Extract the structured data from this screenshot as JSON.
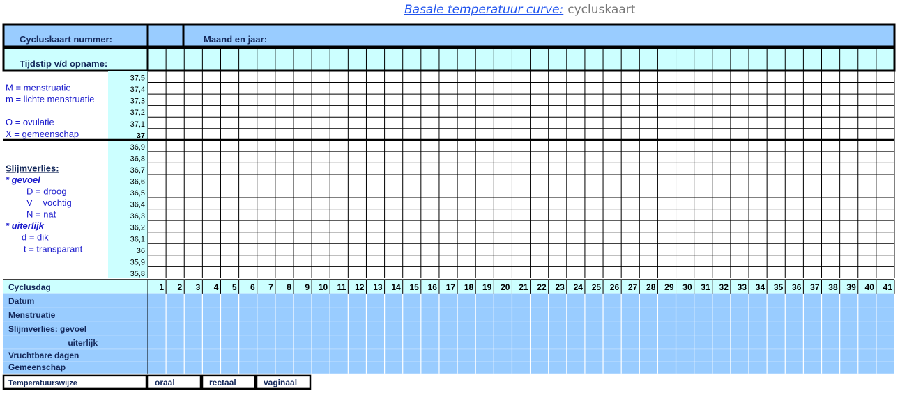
{
  "title": {
    "link": "Basale temperatuur curve:",
    "sub": "cycluskaart"
  },
  "header": {
    "cycle_number_label": "Cycluskaart nummer:",
    "month_year_label": "Maand en jaar:",
    "time_label": "Tijdstip v/d opname:"
  },
  "temperatures": [
    "37,5",
    "37,4",
    "37,3",
    "37,2",
    "37,1",
    "37",
    "36,9",
    "36,8",
    "36,7",
    "36,6",
    "36,5",
    "36,4",
    "36,3",
    "36,2",
    "36,1",
    "36",
    "35,9",
    "35,8"
  ],
  "legend": [
    {
      "text": "M = menstruatie",
      "row": 1,
      "indent": 0,
      "style": "normal"
    },
    {
      "text": "m = lichte menstruatie",
      "row": 2,
      "indent": 0,
      "style": "normal"
    },
    {
      "text": "O = ovulatie",
      "row": 4,
      "indent": 0,
      "style": "normal"
    },
    {
      "text": "X = gemeenschap",
      "row": 5,
      "indent": 0,
      "style": "normal"
    },
    {
      "text": "Slijmverlies:",
      "row": 8,
      "indent": 0,
      "style": "heading"
    },
    {
      "text": "* gevoel",
      "row": 9,
      "indent": 0,
      "style": "italic"
    },
    {
      "text": "D = droog",
      "row": 10,
      "indent": 1,
      "style": "normal"
    },
    {
      "text": "V = vochtig",
      "row": 11,
      "indent": 1,
      "style": "normal"
    },
    {
      "text": "N = nat",
      "row": 12,
      "indent": 1,
      "style": "normal"
    },
    {
      "text": "* uiterlijk",
      "row": 13,
      "indent": 0,
      "style": "italic"
    },
    {
      "text": "d = dik",
      "row": 14,
      "indent": 2,
      "style": "normal"
    },
    {
      "text": "t = transparant",
      "row": 15,
      "indent": 3,
      "style": "normal"
    }
  ],
  "days_label": "Cyclusdag",
  "days": [
    "1",
    "2",
    "3",
    "4",
    "5",
    "6",
    "7",
    "8",
    "9",
    "10",
    "11",
    "12",
    "13",
    "14",
    "15",
    "16",
    "17",
    "18",
    "19",
    "20",
    "21",
    "22",
    "23",
    "24",
    "25",
    "26",
    "27",
    "28",
    "29",
    "30",
    "31",
    "32",
    "33",
    "34",
    "35",
    "36",
    "37",
    "38",
    "39",
    "40",
    "41"
  ],
  "bottom_rows": [
    {
      "label": "Datum",
      "align": "left"
    },
    {
      "label": "Menstruatie",
      "align": "left"
    },
    {
      "label": "Slijmverlies:  gevoel",
      "align": "left"
    },
    {
      "label": "uiterlijk",
      "align": "right"
    },
    {
      "label": "Vruchtbare dagen",
      "align": "left"
    },
    {
      "label": "Gemeenschap",
      "align": "left"
    }
  ],
  "method": {
    "label": "Temperatuurswijze",
    "options": [
      "oraal",
      "rectaal",
      "vaginaal"
    ]
  },
  "colors": {
    "header_fill": "#99ccff",
    "light_fill": "#ccffff",
    "legend_text": "#1a1acc",
    "title_link": "#2255ee",
    "heading_text": "#14285a"
  }
}
